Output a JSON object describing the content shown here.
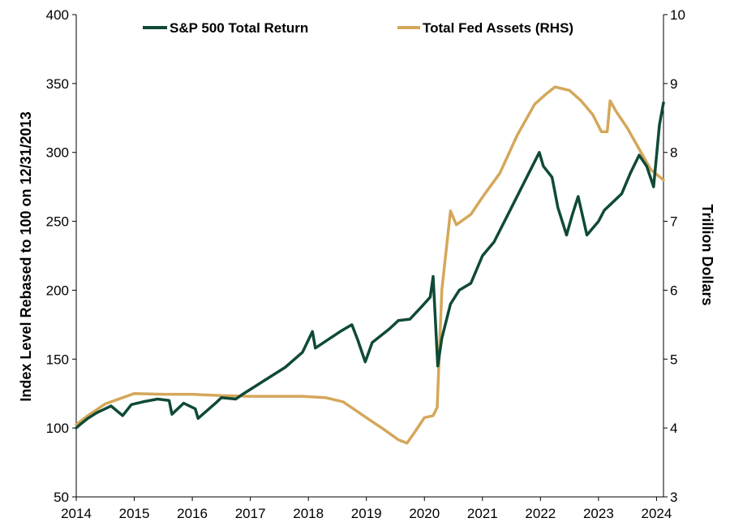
{
  "chart_data": {
    "type": "line",
    "title": "",
    "xlabel": "",
    "ylabel": "Index Level Rebased to 100 on 12/31/2013",
    "y2label": "Trillion Dollars",
    "xlim": [
      2014.0,
      2024.12
    ],
    "ylim": [
      50,
      400
    ],
    "y2lim": [
      3,
      10
    ],
    "x_ticks": [
      2014,
      2015,
      2016,
      2017,
      2018,
      2019,
      2020,
      2021,
      2022,
      2023,
      2024
    ],
    "x_tick_labels": [
      "2014",
      "2015",
      "2016",
      "2017",
      "2018",
      "2019",
      "2020",
      "2021",
      "2022",
      "2023",
      "2024"
    ],
    "y_ticks": [
      50,
      100,
      150,
      200,
      250,
      300,
      350,
      400
    ],
    "y_tick_labels": [
      "50",
      "100",
      "150",
      "200",
      "250",
      "300",
      "350",
      "400"
    ],
    "y2_ticks": [
      3,
      4,
      5,
      6,
      7,
      8,
      9,
      10
    ],
    "y2_tick_labels": [
      "3",
      "4",
      "5",
      "6",
      "7",
      "8",
      "9",
      "10"
    ],
    "legend_position": "top",
    "series": [
      {
        "name": "S&P 500 Total Return",
        "axis": "left",
        "color": "#0f4a36",
        "x": [
          2014.0,
          2014.08,
          2014.2,
          2014.35,
          2014.5,
          2014.6,
          2014.8,
          2014.95,
          2015.15,
          2015.4,
          2015.6,
          2015.65,
          2015.85,
          2016.05,
          2016.1,
          2016.4,
          2016.5,
          2016.75,
          2016.85,
          2017.0,
          2017.3,
          2017.6,
          2017.9,
          2018.07,
          2018.12,
          2018.3,
          2018.55,
          2018.75,
          2018.85,
          2018.98,
          2019.1,
          2019.4,
          2019.55,
          2019.75,
          2019.95,
          2020.1,
          2020.15,
          2020.23,
          2020.3,
          2020.45,
          2020.6,
          2020.8,
          2021.0,
          2021.2,
          2021.5,
          2021.8,
          2021.98,
          2022.05,
          2022.2,
          2022.3,
          2022.45,
          2022.55,
          2022.65,
          2022.8,
          2022.9,
          2023.0,
          2023.1,
          2023.2,
          2023.4,
          2023.55,
          2023.7,
          2023.83,
          2023.95,
          2024.05,
          2024.12
        ],
        "values": [
          100,
          103,
          107,
          111,
          114,
          116,
          109,
          117,
          119,
          121,
          120,
          110,
          118,
          114,
          107,
          118,
          122,
          121,
          124,
          128,
          136,
          144,
          155,
          170,
          158,
          163,
          170,
          175,
          164,
          148,
          162,
          172,
          178,
          179,
          188,
          195,
          210,
          145,
          165,
          190,
          200,
          205,
          225,
          235,
          260,
          285,
          300,
          290,
          282,
          260,
          240,
          255,
          268,
          240,
          245,
          250,
          258,
          262,
          270,
          285,
          298,
          290,
          275,
          320,
          336
        ]
      },
      {
        "name": "Total Fed Assets (RHS)",
        "axis": "right",
        "color": "#d4a75a",
        "x": [
          2014.0,
          2014.2,
          2014.5,
          2014.8,
          2015.0,
          2015.5,
          2016.0,
          2016.5,
          2017.0,
          2017.5,
          2017.9,
          2018.3,
          2018.6,
          2019.0,
          2019.3,
          2019.55,
          2019.7,
          2019.85,
          2020.0,
          2020.15,
          2020.22,
          2020.3,
          2020.45,
          2020.55,
          2020.8,
          2021.0,
          2021.3,
          2021.6,
          2021.9,
          2022.1,
          2022.25,
          2022.5,
          2022.7,
          2022.9,
          2023.05,
          2023.15,
          2023.2,
          2023.3,
          2023.5,
          2023.7,
          2023.9,
          2024.12
        ],
        "values": [
          4.05,
          4.18,
          4.35,
          4.44,
          4.5,
          4.49,
          4.49,
          4.47,
          4.46,
          4.46,
          4.46,
          4.44,
          4.38,
          4.15,
          3.98,
          3.83,
          3.78,
          3.96,
          4.15,
          4.18,
          4.3,
          6.0,
          7.15,
          6.95,
          7.1,
          7.35,
          7.7,
          8.25,
          8.7,
          8.85,
          8.95,
          8.9,
          8.75,
          8.55,
          8.3,
          8.3,
          8.75,
          8.6,
          8.35,
          8.05,
          7.75,
          7.6
        ]
      }
    ]
  }
}
